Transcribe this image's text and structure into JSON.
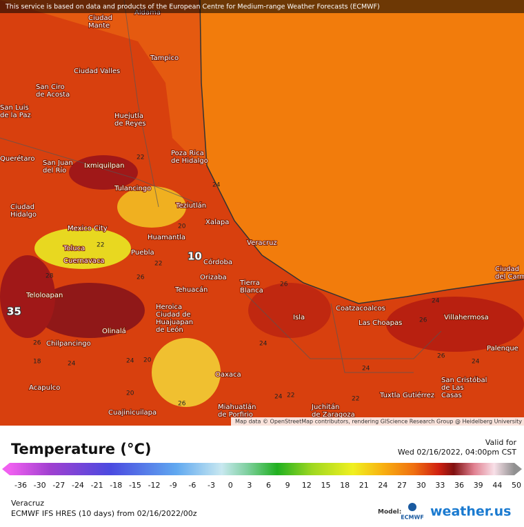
{
  "header": {
    "notice": "This service is based on data and products of the European Centre for Medium-range Weather Forecasts (ECMWF)"
  },
  "map": {
    "cities": [
      [
        "Aldama"
      ],
      [
        "Ciudad",
        "Mante"
      ],
      [
        "Tampico"
      ],
      [
        "Ciudad Valles"
      ],
      [
        "San Ciro",
        "de Acosta"
      ],
      [
        "San Luis",
        "de la Paz"
      ],
      [
        "Huejutla",
        "de Reyes"
      ],
      [
        "Poza Rica",
        "de Hidalgo"
      ],
      [
        "Querétaro"
      ],
      [
        "San Juan",
        "del Río"
      ],
      [
        "Ixmiquilpan"
      ],
      [
        "Tulancingo"
      ],
      [
        "Ciudad",
        "Hidalgo"
      ],
      [
        "Teziutlán"
      ],
      [
        "Xalapa"
      ],
      [
        "Mexico City"
      ],
      [
        "Huamantla"
      ],
      [
        "Toluca"
      ],
      [
        "Veracruz"
      ],
      [
        "Puebla"
      ],
      [
        "Cuernavaca"
      ],
      [
        "Córdoba"
      ],
      [
        "Orizaba"
      ],
      [
        "Tierra",
        "Blanca"
      ],
      [
        "Tehuacán"
      ],
      [
        "Teloloapan"
      ],
      [
        "Coatzacoalcos"
      ],
      [
        "Heroica",
        "Ciudad de",
        "Huajuapan",
        "de León"
      ],
      [
        "Isla"
      ],
      [
        "Villahermosa"
      ],
      [
        "Las Choapas"
      ],
      [
        "Olinalá"
      ],
      [
        "Chilpancingo"
      ],
      [
        "Palenque"
      ],
      [
        "Oaxaca"
      ],
      [
        "San Cristóbal",
        "de Las",
        "Casas"
      ],
      [
        "Acapulco"
      ],
      [
        "Tuxtla Gutiérrez"
      ],
      [
        "Juchitán",
        "de Zaragoza"
      ],
      [
        "Miahuatlán",
        "de Porfirio"
      ],
      [
        "Cuajinicuilapa"
      ],
      [
        "Ciudad",
        "del Carmen"
      ]
    ],
    "contours": [
      22,
      24,
      20,
      22,
      22,
      28,
      26,
      26,
      26,
      18,
      24,
      24,
      20,
      24,
      24,
      26,
      24,
      24,
      26,
      24,
      22,
      22,
      26,
      20
    ],
    "extremes": [
      10,
      35
    ],
    "attribution": "Map data © OpenStreetMap contributors, rendering GIScience Research Group @ Heidelberg University"
  },
  "legend": {
    "title": "Temperature (°C)",
    "valid_label": "Valid for",
    "valid_time": "Wed 02/16/2022, 04:00pm CST",
    "ticks": [
      -36,
      -30,
      -27,
      -24,
      -21,
      -18,
      -15,
      -12,
      -9,
      -6,
      -3,
      0,
      3,
      6,
      9,
      12,
      15,
      18,
      21,
      24,
      27,
      30,
      33,
      36,
      39,
      44,
      50
    ]
  },
  "footer": {
    "location": "Veracruz",
    "run": "ECMWF IFS HRES (10 days) from 02/16/2022/00z",
    "model_label": "Model:",
    "model_logo": "ECMWF",
    "brand": "weather.us"
  }
}
